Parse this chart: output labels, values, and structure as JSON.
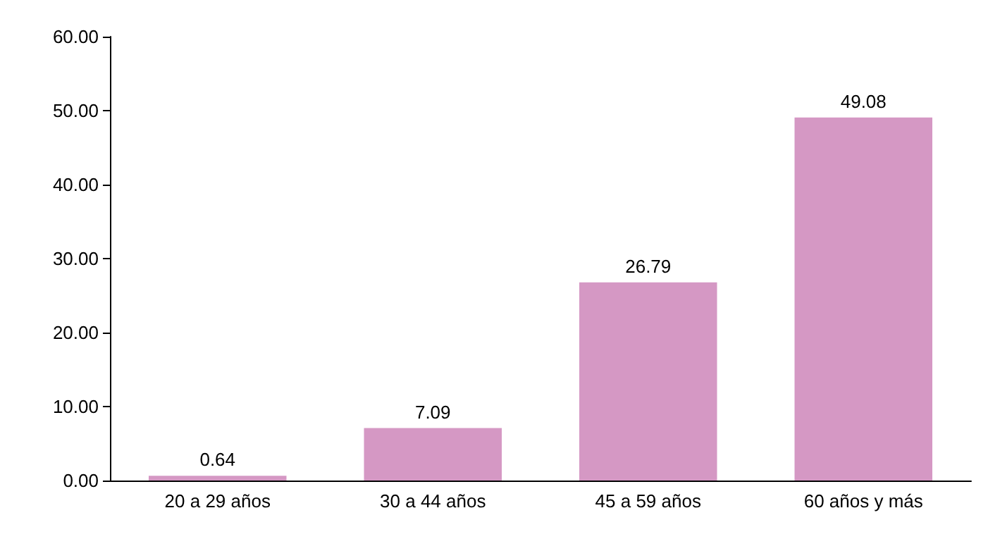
{
  "chart_data": {
    "type": "bar",
    "categories": [
      "20 a 29 años",
      "30 a 44 años",
      "45 a 59 años",
      "60 años y más"
    ],
    "values": [
      0.64,
      7.09,
      26.79,
      49.08
    ],
    "color": "#d598c4",
    "ylim": [
      0,
      60
    ],
    "yticks": [
      {
        "value": 0,
        "label": "0.00"
      },
      {
        "value": 10,
        "label": "10.00"
      },
      {
        "value": 20,
        "label": "20.00"
      },
      {
        "value": 30,
        "label": "30.00"
      },
      {
        "value": 40,
        "label": "40.00"
      },
      {
        "value": 50,
        "label": "50.00"
      },
      {
        "value": 60,
        "label": "60.00"
      }
    ],
    "data_labels": true
  }
}
